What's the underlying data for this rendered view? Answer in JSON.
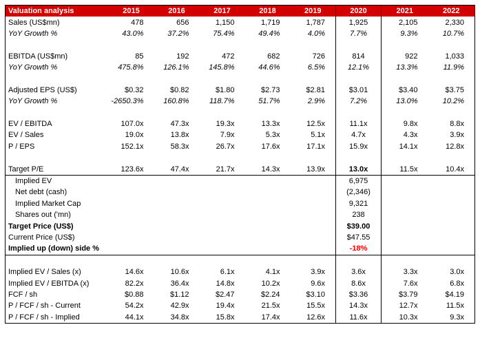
{
  "table": {
    "header": [
      "Valuation analysis",
      "2015",
      "2016",
      "2017",
      "2018",
      "2019",
      "2020",
      "2021",
      "2022"
    ],
    "rows": [
      {
        "label": "Sales (US$mn)",
        "cells": [
          "478",
          "656",
          "1,150",
          "1,719",
          "1,787",
          "1,925",
          "2,105",
          "2,330"
        ]
      },
      {
        "label": "YoY Growth %",
        "cells": [
          "43.0%",
          "37.2%",
          "75.4%",
          "49.4%",
          "4.0%",
          "7.7%",
          "9.3%",
          "10.7%"
        ]
      },
      {
        "label": "EBITDA (US$mn)",
        "cells": [
          "85",
          "192",
          "472",
          "682",
          "726",
          "814",
          "922",
          "1,033"
        ]
      },
      {
        "label": "YoY Growth %",
        "cells": [
          "475.8%",
          "126.1%",
          "145.8%",
          "44.6%",
          "6.5%",
          "12.1%",
          "13.3%",
          "11.9%"
        ]
      },
      {
        "label": "Adjusted EPS (US$)",
        "cells": [
          "$0.32",
          "$0.82",
          "$1.80",
          "$2.73",
          "$2.81",
          "$3.01",
          "$3.40",
          "$3.75"
        ]
      },
      {
        "label": "YoY Growth %",
        "cells": [
          "-2650.3%",
          "160.8%",
          "118.7%",
          "51.7%",
          "2.9%",
          "7.2%",
          "13.0%",
          "10.2%"
        ]
      },
      {
        "label": "EV / EBITDA",
        "cells": [
          "107.0x",
          "47.3x",
          "19.3x",
          "13.3x",
          "12.5x",
          "11.1x",
          "9.8x",
          "8.8x"
        ]
      },
      {
        "label": "EV / Sales",
        "cells": [
          "19.0x",
          "13.8x",
          "7.9x",
          "5.3x",
          "5.1x",
          "4.7x",
          "4.3x",
          "3.9x"
        ]
      },
      {
        "label": "P / EPS",
        "cells": [
          "152.1x",
          "58.3x",
          "26.7x",
          "17.6x",
          "17.1x",
          "15.9x",
          "14.1x",
          "12.8x"
        ]
      },
      {
        "label": "Target P/E",
        "cells": [
          "123.6x",
          "47.4x",
          "21.7x",
          "14.3x",
          "13.9x",
          "13.0x",
          "11.5x",
          "10.4x"
        ]
      },
      {
        "label": "Implied EV",
        "cells": [
          null,
          null,
          null,
          null,
          null,
          "6,975",
          null,
          null
        ]
      },
      {
        "label": "Net debt (cash)",
        "cells": [
          null,
          null,
          null,
          null,
          null,
          "(2,346)",
          null,
          null
        ]
      },
      {
        "label": "Implied Market Cap",
        "cells": [
          null,
          null,
          null,
          null,
          null,
          "9,321",
          null,
          null
        ]
      },
      {
        "label": "Shares out ('mn)",
        "cells": [
          null,
          null,
          null,
          null,
          null,
          "238",
          null,
          null
        ]
      },
      {
        "label": "Target Price (US$)",
        "cells": [
          null,
          null,
          null,
          null,
          null,
          "$39.00",
          null,
          null
        ]
      },
      {
        "label": "Current Price (US$)",
        "cells": [
          null,
          null,
          null,
          null,
          null,
          "$47.55",
          null,
          null
        ]
      },
      {
        "label": "Implied up (down) side %",
        "cells": [
          null,
          null,
          null,
          null,
          null,
          "-18%",
          null,
          null
        ]
      },
      {
        "label": "Implied EV / Sales (x)",
        "cells": [
          "14.6x",
          "10.6x",
          "6.1x",
          "4.1x",
          "3.9x",
          "3.6x",
          "3.3x",
          "3.0x"
        ]
      },
      {
        "label": "Implied EV / EBITDA (x)",
        "cells": [
          "82.2x",
          "36.4x",
          "14.8x",
          "10.2x",
          "9.6x",
          "8.6x",
          "7.6x",
          "6.8x"
        ]
      },
      {
        "label": "FCF / sh",
        "cells": [
          "$0.88",
          "$1.12",
          "$2.47",
          "$2.24",
          "$3.10",
          "$3.36",
          "$3.79",
          "$4.19"
        ]
      },
      {
        "label": "P / FCF / sh - Current",
        "cells": [
          "54.2x",
          "42.9x",
          "19.4x",
          "21.5x",
          "15.5x",
          "14.3x",
          "12.7x",
          "11.5x"
        ]
      },
      {
        "label": "P / FCF / sh - Implied",
        "cells": [
          "44.1x",
          "34.8x",
          "15.8x",
          "17.4x",
          "12.6x",
          "11.6x",
          "10.3x",
          "9.3x"
        ]
      }
    ]
  }
}
